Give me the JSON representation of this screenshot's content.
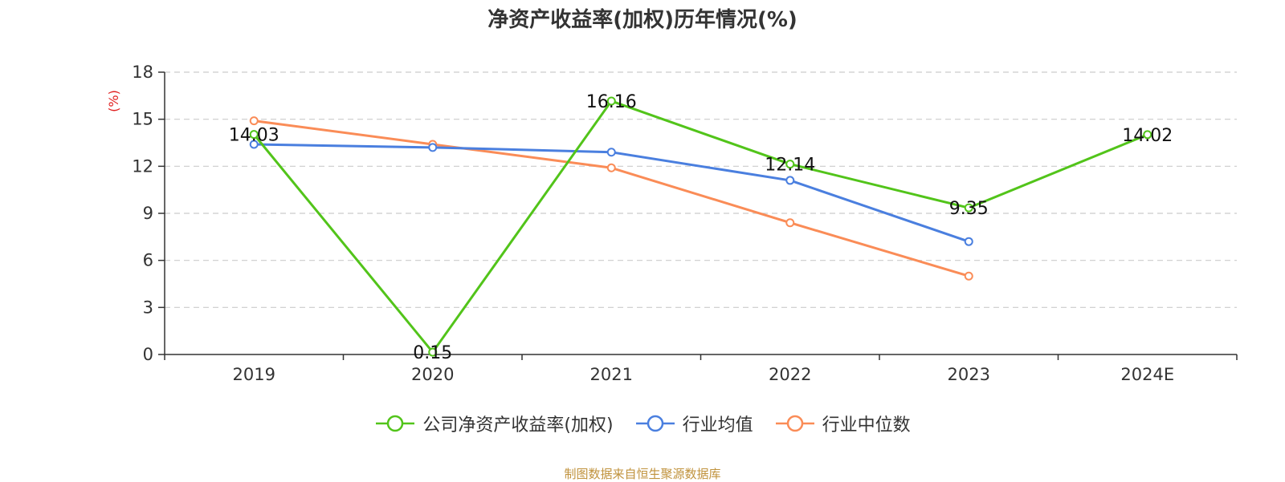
{
  "chart_data": {
    "type": "line",
    "title": "净资产收益率(加权)历年情况(%)",
    "ylabel": "(%)",
    "xlabel": "",
    "categories": [
      "2019",
      "2020",
      "2021",
      "2022",
      "2023",
      "2024E"
    ],
    "ylim": [
      0,
      18
    ],
    "yticks": [
      0,
      3,
      6,
      9,
      12,
      15,
      18
    ],
    "grid": true,
    "legend_position": "bottom",
    "series": [
      {
        "name": "公司净资产收益率(加权)",
        "color": "#52c41a",
        "values": [
          14.03,
          0.15,
          16.16,
          12.14,
          9.35,
          14.02
        ],
        "labels": [
          "14.03",
          "0.15",
          "16.16",
          "12.14",
          "9.35",
          "14.02"
        ]
      },
      {
        "name": "行业均值",
        "color": "#4a7fdf",
        "values": [
          13.4,
          13.2,
          12.9,
          11.1,
          7.2,
          null
        ]
      },
      {
        "name": "行业中位数",
        "color": "#fa8c57",
        "values": [
          14.9,
          13.4,
          11.9,
          8.4,
          5.0,
          null
        ]
      }
    ]
  },
  "source": "制图数据来自恒生聚源数据库"
}
